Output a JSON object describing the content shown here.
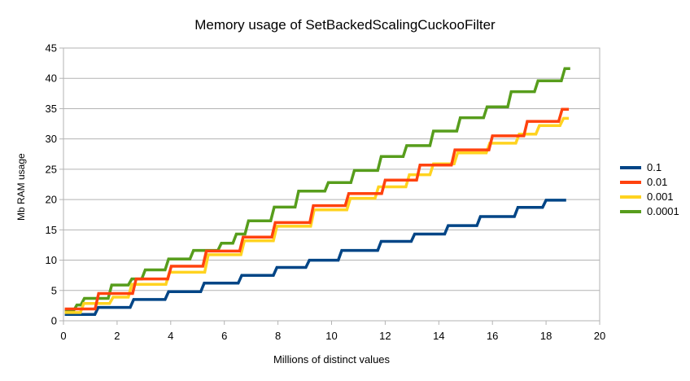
{
  "chart_data": {
    "type": "line",
    "line_style": "step",
    "title": "Memory usage of SetBackedScalingCuckooFilter",
    "xlabel": "Millions of distinct values",
    "ylabel": "Mb RAM usage",
    "xlim": [
      0,
      20
    ],
    "ylim": [
      0,
      45
    ],
    "x_ticks": [
      0,
      2,
      4,
      6,
      8,
      10,
      12,
      14,
      16,
      18,
      20
    ],
    "y_ticks": [
      0,
      5,
      10,
      15,
      20,
      25,
      30,
      35,
      40,
      45
    ],
    "grid": "horizontal-only",
    "legend_position": "right",
    "legend_entries": [
      "0.1",
      "0.01",
      "0.001",
      "0.0001"
    ],
    "series": [
      {
        "name": "0.1",
        "color": "#004586",
        "x_end": 18.75,
        "steps": [
          [
            0.05,
            1.05
          ],
          [
            1.3,
            2.2
          ],
          [
            2.62,
            3.5
          ],
          [
            3.92,
            4.8
          ],
          [
            5.25,
            6.2
          ],
          [
            6.65,
            7.5
          ],
          [
            7.96,
            8.8
          ],
          [
            9.17,
            10.0
          ],
          [
            10.38,
            11.6
          ],
          [
            11.85,
            13.1
          ],
          [
            13.1,
            14.3
          ],
          [
            14.35,
            15.7
          ],
          [
            15.55,
            17.2
          ],
          [
            16.95,
            18.7
          ],
          [
            18.0,
            19.9
          ]
        ]
      },
      {
        "name": "0.01",
        "color": "#ff420e",
        "x_end": 18.85,
        "steps": [
          [
            0.05,
            1.95
          ],
          [
            1.31,
            4.5
          ],
          [
            2.71,
            6.9
          ],
          [
            4.02,
            9.0
          ],
          [
            5.33,
            11.5
          ],
          [
            6.7,
            13.8
          ],
          [
            7.9,
            16.2
          ],
          [
            9.32,
            19.0
          ],
          [
            10.64,
            21.0
          ],
          [
            12.0,
            23.2
          ],
          [
            13.3,
            25.7
          ],
          [
            14.6,
            28.2
          ],
          [
            16.0,
            30.5
          ],
          [
            17.3,
            32.9
          ],
          [
            18.6,
            34.9
          ]
        ]
      },
      {
        "name": "0.001",
        "color": "#ffd320",
        "x_end": 18.85,
        "steps": [
          [
            0.05,
            1.35
          ],
          [
            0.76,
            2.85
          ],
          [
            1.85,
            3.9
          ],
          [
            2.55,
            6.0
          ],
          [
            3.95,
            8.0
          ],
          [
            5.4,
            10.9
          ],
          [
            6.75,
            13.2
          ],
          [
            7.96,
            15.6
          ],
          [
            9.35,
            18.3
          ],
          [
            10.7,
            20.2
          ],
          [
            11.75,
            22.1
          ],
          [
            12.9,
            24.1
          ],
          [
            13.8,
            25.9
          ],
          [
            14.7,
            27.7
          ],
          [
            15.9,
            29.3
          ],
          [
            17.0,
            30.8
          ],
          [
            17.75,
            32.2
          ],
          [
            18.65,
            33.4
          ]
        ]
      },
      {
        "name": "0.0001",
        "color": "#579d1c",
        "x_end": 18.9,
        "steps": [
          [
            0.05,
            1.6
          ],
          [
            0.5,
            2.6
          ],
          [
            0.78,
            3.7
          ],
          [
            1.8,
            5.9
          ],
          [
            2.55,
            6.9
          ],
          [
            3.05,
            8.4
          ],
          [
            3.92,
            10.2
          ],
          [
            4.85,
            11.6
          ],
          [
            5.89,
            12.8
          ],
          [
            6.45,
            14.3
          ],
          [
            6.9,
            16.5
          ],
          [
            7.86,
            18.75
          ],
          [
            8.77,
            21.4
          ],
          [
            9.88,
            22.8
          ],
          [
            10.85,
            24.8
          ],
          [
            11.85,
            27.1
          ],
          [
            12.8,
            28.9
          ],
          [
            13.8,
            31.3
          ],
          [
            14.8,
            33.5
          ],
          [
            15.8,
            35.3
          ],
          [
            16.7,
            37.8
          ],
          [
            17.7,
            39.6
          ],
          [
            18.7,
            41.6
          ]
        ]
      }
    ]
  },
  "colors": {
    "background": "#ffffff",
    "grid": "#b3b3b3",
    "axis": "#b3b3b3",
    "text": "#000000"
  }
}
